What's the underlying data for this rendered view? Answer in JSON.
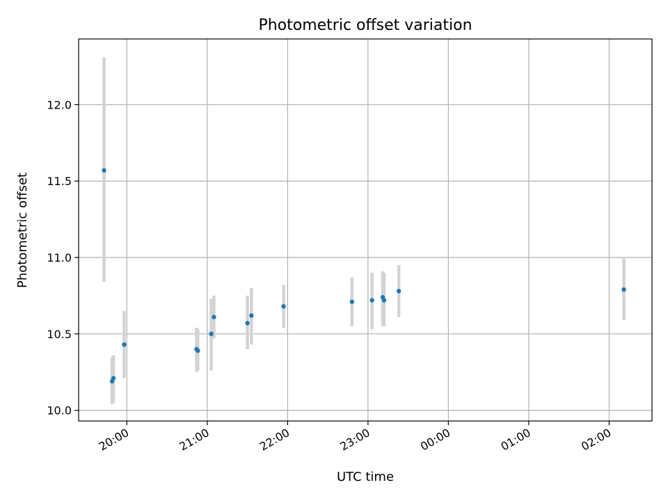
{
  "chart_data": {
    "type": "scatter",
    "title": "Photometric offset variation",
    "xlabel": "UTC time",
    "ylabel": "Photometric offset",
    "xaxis": {
      "range": [
        "19:24",
        "02:32"
      ],
      "ticks": [
        {
          "time": "20:00",
          "label": "20:00"
        },
        {
          "time": "21:00",
          "label": "21:00"
        },
        {
          "time": "22:00",
          "label": "22:00"
        },
        {
          "time": "23:00",
          "label": "23:00"
        },
        {
          "time": "00:00",
          "label": "00:00"
        },
        {
          "time": "01:00",
          "label": "01:00"
        },
        {
          "time": "02:00",
          "label": "02:00"
        }
      ]
    },
    "yaxis": {
      "range": [
        9.93,
        12.43
      ],
      "ticks": [
        {
          "value": 10.0,
          "label": "10.0"
        },
        {
          "value": 10.5,
          "label": "10.5"
        },
        {
          "value": 11.0,
          "label": "11.0"
        },
        {
          "value": 11.5,
          "label": "11.5"
        },
        {
          "value": 12.0,
          "label": "12.0"
        }
      ]
    },
    "grid": true,
    "colors": {
      "point": "#1f77b4",
      "errorbar": "#d3d3d3",
      "grid": "#b0b0b0"
    },
    "points": [
      {
        "time": "19:43",
        "y": 11.57,
        "low": 10.84,
        "high": 12.31
      },
      {
        "time": "19:49",
        "y": 10.19,
        "low": 10.04,
        "high": 10.35
      },
      {
        "time": "19:50",
        "y": 10.21,
        "low": 10.05,
        "high": 10.36
      },
      {
        "time": "19:58",
        "y": 10.43,
        "low": 10.21,
        "high": 10.65
      },
      {
        "time": "20:52",
        "y": 10.4,
        "low": 10.25,
        "high": 10.54
      },
      {
        "time": "20:53",
        "y": 10.39,
        "low": 10.26,
        "high": 10.53
      },
      {
        "time": "21:03",
        "y": 10.5,
        "low": 10.26,
        "high": 10.73
      },
      {
        "time": "21:05",
        "y": 10.61,
        "low": 10.47,
        "high": 10.75
      },
      {
        "time": "21:30",
        "y": 10.57,
        "low": 10.4,
        "high": 10.75
      },
      {
        "time": "21:33",
        "y": 10.62,
        "low": 10.43,
        "high": 10.8
      },
      {
        "time": "21:57",
        "y": 10.68,
        "low": 10.54,
        "high": 10.82
      },
      {
        "time": "22:48",
        "y": 10.71,
        "low": 10.55,
        "high": 10.87
      },
      {
        "time": "23:03",
        "y": 10.72,
        "low": 10.53,
        "high": 10.9
      },
      {
        "time": "23:11",
        "y": 10.74,
        "low": 10.55,
        "high": 10.91
      },
      {
        "time": "23:12",
        "y": 10.72,
        "low": 10.55,
        "high": 10.9
      },
      {
        "time": "23:23",
        "y": 10.78,
        "low": 10.61,
        "high": 10.95
      },
      {
        "time": "02:11",
        "y": 10.79,
        "low": 10.59,
        "high": 11.0
      }
    ]
  }
}
